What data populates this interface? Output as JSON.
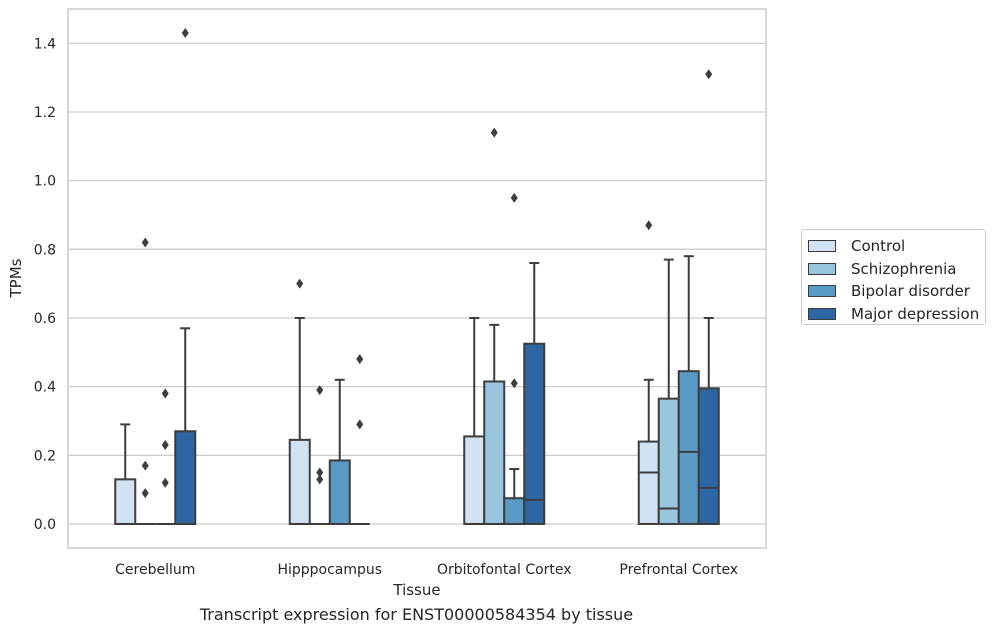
{
  "chart_data": {
    "type": "box",
    "xlabel": "Tissue",
    "ylabel": "TPMs",
    "caption": "Transcript expression for ENST00000584354 by tissue",
    "categories": [
      "Cerebellum",
      "Hipppocampus",
      "Orbitofontal Cortex",
      "Prefrontal Cortex"
    ],
    "ylim": [
      -0.07,
      1.5
    ],
    "yticks": [
      "0.0",
      "0.2",
      "0.4",
      "0.6",
      "0.8",
      "1.0",
      "1.2",
      "1.4"
    ],
    "grid": true,
    "legend_position": "right",
    "series": [
      {
        "name": "Control",
        "color": "#d1e2f2",
        "boxes": [
          {
            "q1": 0.0,
            "median": 0.0,
            "q3": 0.13,
            "whisker_low": 0.0,
            "whisker_high": 0.29,
            "outliers": []
          },
          {
            "q1": 0.0,
            "median": 0.0,
            "q3": 0.245,
            "whisker_low": 0.0,
            "whisker_high": 0.6,
            "outliers": [
              0.7
            ]
          },
          {
            "q1": 0.0,
            "median": 0.0,
            "q3": 0.255,
            "whisker_low": 0.0,
            "whisker_high": 0.6,
            "outliers": []
          },
          {
            "q1": 0.0,
            "median": 0.15,
            "q3": 0.24,
            "whisker_low": 0.0,
            "whisker_high": 0.42,
            "outliers": [
              0.87
            ]
          }
        ]
      },
      {
        "name": "Schizophrenia",
        "color": "#9ac5df",
        "boxes": [
          {
            "q1": 0.0,
            "median": 0.0,
            "q3": 0.0,
            "whisker_low": 0.0,
            "whisker_high": 0.0,
            "outliers": [
              0.82,
              0.17,
              0.09
            ]
          },
          {
            "q1": 0.0,
            "median": 0.0,
            "q3": 0.0,
            "whisker_low": 0.0,
            "whisker_high": 0.0,
            "outliers": [
              0.39,
              0.15,
              0.13
            ]
          },
          {
            "q1": 0.0,
            "median": 0.0,
            "q3": 0.415,
            "whisker_low": 0.0,
            "whisker_high": 0.58,
            "outliers": [
              1.14
            ]
          },
          {
            "q1": 0.0,
            "median": 0.045,
            "q3": 0.365,
            "whisker_low": 0.0,
            "whisker_high": 0.77,
            "outliers": []
          }
        ]
      },
      {
        "name": "Bipolar disorder",
        "color": "#5a9ac6",
        "boxes": [
          {
            "q1": 0.0,
            "median": 0.0,
            "q3": 0.0,
            "whisker_low": 0.0,
            "whisker_high": 0.0,
            "outliers": [
              0.38,
              0.23,
              0.12
            ]
          },
          {
            "q1": 0.0,
            "median": 0.0,
            "q3": 0.185,
            "whisker_low": 0.0,
            "whisker_high": 0.42,
            "outliers": []
          },
          {
            "q1": 0.0,
            "median": 0.0,
            "q3": 0.075,
            "whisker_low": 0.0,
            "whisker_high": 0.16,
            "outliers": [
              0.95,
              0.41
            ]
          },
          {
            "q1": 0.0,
            "median": 0.21,
            "q3": 0.445,
            "whisker_low": 0.0,
            "whisker_high": 0.78,
            "outliers": []
          }
        ]
      },
      {
        "name": "Major depression",
        "color": "#2d67a3",
        "boxes": [
          {
            "q1": 0.0,
            "median": 0.0,
            "q3": 0.27,
            "whisker_low": 0.0,
            "whisker_high": 0.57,
            "outliers": [
              1.43
            ]
          },
          {
            "q1": 0.0,
            "median": 0.0,
            "q3": 0.0,
            "whisker_low": 0.0,
            "whisker_high": 0.0,
            "outliers": [
              0.48,
              0.29
            ]
          },
          {
            "q1": 0.0,
            "median": 0.07,
            "q3": 0.525,
            "whisker_low": 0.0,
            "whisker_high": 0.76,
            "outliers": []
          },
          {
            "q1": 0.0,
            "median": 0.105,
            "q3": 0.395,
            "whisker_low": 0.0,
            "whisker_high": 0.6,
            "outliers": [
              1.31
            ]
          }
        ]
      }
    ]
  }
}
